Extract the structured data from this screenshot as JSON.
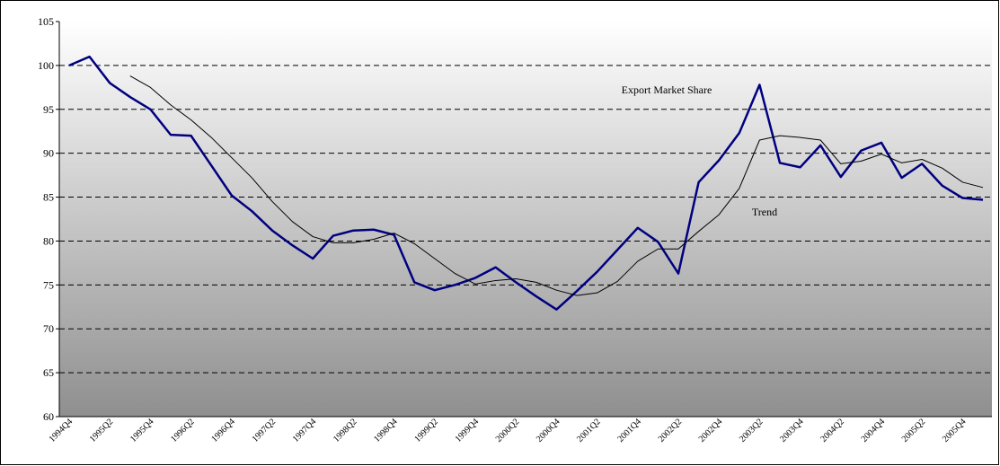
{
  "chart_data": {
    "type": "line",
    "categories": [
      "1994Q4",
      null,
      "1995Q2",
      null,
      "1995Q4",
      null,
      "1996Q2",
      null,
      "1996Q4",
      null,
      "1997Q2",
      null,
      "1997Q4",
      null,
      "1998Q2",
      null,
      "1998Q4",
      null,
      "1999Q2",
      null,
      "1999Q4",
      null,
      "2000Q2",
      null,
      "2000Q4",
      null,
      "2001Q2",
      null,
      "2001Q4",
      null,
      "2002Q2",
      null,
      "2002Q4",
      null,
      "2003Q2",
      null,
      "2003Q4",
      null,
      "2004Q2",
      null,
      "2004Q4",
      null,
      "2005Q2",
      null,
      "2005Q4",
      null
    ],
    "series": [
      {
        "name": "Export Market Share",
        "color": "#000080",
        "width": 2.5,
        "values": [
          100,
          101,
          98,
          96.4,
          95,
          92.1,
          92,
          88.6,
          85.2,
          83.4,
          81.2,
          79.5,
          78,
          80.6,
          81.2,
          81.3,
          80.7,
          75.3,
          74.4,
          75,
          75.8,
          77,
          75.3,
          73.7,
          72.2,
          74.3,
          76.5,
          79,
          81.5,
          79.9,
          76.3,
          86.7,
          89.2,
          92.3,
          97.8,
          88.9,
          88.4,
          90.9,
          87.3,
          90.3,
          91.2,
          87.2,
          88.8,
          86.3,
          84.9,
          84.7
        ]
      },
      {
        "name": "Trend",
        "color": "#000000",
        "width": 1,
        "values": [
          null,
          null,
          null,
          98.8,
          97.5,
          95.5,
          93.8,
          91.8,
          89.5,
          87.2,
          84.5,
          82.2,
          80.5,
          79.8,
          79.8,
          80.2,
          80.9,
          79.7,
          78,
          76.3,
          75.1,
          75.5,
          75.7,
          75.3,
          74.4,
          73.8,
          74.1,
          75.4,
          77.7,
          79.1,
          79.1,
          81.1,
          83,
          86,
          91.5,
          92,
          91.8,
          91.5,
          88.8,
          89.1,
          89.9,
          88.9,
          89.3,
          88.3,
          86.7,
          86.1
        ]
      }
    ],
    "ylim": [
      60,
      105
    ],
    "yticks": [
      60,
      65,
      70,
      75,
      80,
      85,
      90,
      95,
      100,
      105
    ],
    "grid": true
  }
}
